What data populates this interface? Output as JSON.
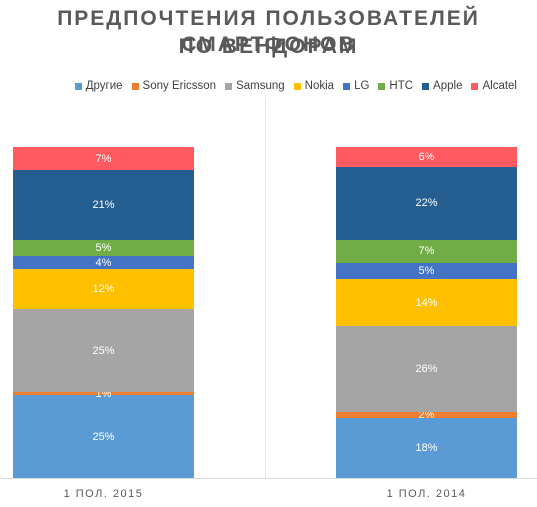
{
  "title_line1": "ПРЕДПОЧТЕНИЯ ПОЛЬЗОВАТЕЛЕЙ СМАРТФОНОВ",
  "title_line2": "ПО ВЕНДОРАМ",
  "chart_data": {
    "type": "bar",
    "stacked": true,
    "percent_stacked": true,
    "title": "ПРЕДПОЧТЕНИЯ ПОЛЬЗОВАТЕЛЕЙ СМАРТФОНОВ ПО ВЕНДОРАМ",
    "categories": [
      "1 ПОЛ. 2015",
      "1 ПОЛ. 2014"
    ],
    "legend_position": "top-right",
    "grid": false,
    "series": [
      {
        "name": "Другие",
        "color": "#5b9bd5",
        "values": [
          25,
          18
        ],
        "labels": [
          "25%",
          "18%"
        ]
      },
      {
        "name": "Sony Ericsson",
        "color": "#ed7d31",
        "values": [
          1,
          2
        ],
        "labels": [
          "1%",
          "2%"
        ]
      },
      {
        "name": "Samsung",
        "color": "#a5a5a5",
        "values": [
          25,
          26
        ],
        "labels": [
          "25%",
          "26%"
        ]
      },
      {
        "name": "Nokia",
        "color": "#ffc000",
        "values": [
          12,
          14
        ],
        "labels": [
          "12%",
          "14%"
        ]
      },
      {
        "name": "LG",
        "color": "#4472c4",
        "values": [
          4,
          5
        ],
        "labels": [
          "4%",
          "5%"
        ]
      },
      {
        "name": "HTC",
        "color": "#70ad47",
        "values": [
          5,
          7
        ],
        "labels": [
          "5%",
          "7%"
        ]
      },
      {
        "name": "Apple",
        "color": "#255e91",
        "values": [
          21,
          22
        ],
        "labels": [
          "21%",
          "22%"
        ]
      },
      {
        "name": "Alcatel",
        "color": "#ff5a5f",
        "values": [
          7,
          6
        ],
        "labels": [
          "7%",
          "6%"
        ]
      }
    ]
  }
}
